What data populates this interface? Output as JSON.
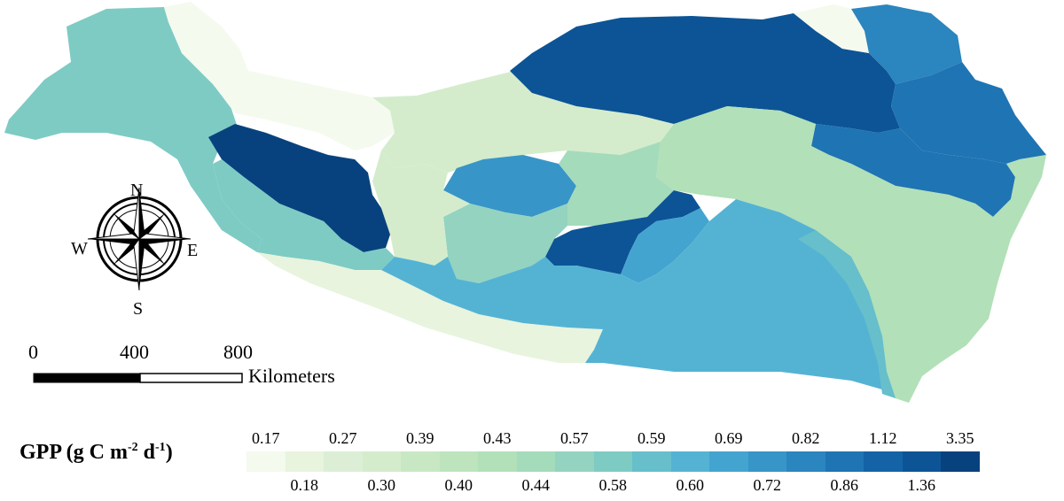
{
  "legend": {
    "title_main": "GPP (g C m",
    "title_exp1": "-2",
    "title_mid": " d",
    "title_exp2": "-1",
    "title_end": ")",
    "classes": [
      {
        "label": "0.17",
        "color": "#f4faee"
      },
      {
        "label": "0.18",
        "color": "#e8f4de"
      },
      {
        "label": "0.27",
        "color": "#dcefd6"
      },
      {
        "label": "0.30",
        "color": "#d4eccc"
      },
      {
        "label": "0.39",
        "color": "#c8e8c4"
      },
      {
        "label": "0.40",
        "color": "#bde4bd"
      },
      {
        "label": "0.43",
        "color": "#b2e0b8"
      },
      {
        "label": "0.44",
        "color": "#a4dbbb"
      },
      {
        "label": "0.57",
        "color": "#94d3c0"
      },
      {
        "label": "0.58",
        "color": "#7ecbc4"
      },
      {
        "label": "0.59",
        "color": "#66bfcb"
      },
      {
        "label": "0.60",
        "color": "#54b3d3"
      },
      {
        "label": "0.69",
        "color": "#44a4d0"
      },
      {
        "label": "0.72",
        "color": "#3895c8"
      },
      {
        "label": "0.82",
        "color": "#2b85be"
      },
      {
        "label": "0.86",
        "color": "#1f74b3"
      },
      {
        "label": "1.12",
        "color": "#1463a6"
      },
      {
        "label": "1.36",
        "color": "#0c5496"
      },
      {
        "label": "3.35",
        "color": "#08427e"
      }
    ]
  },
  "compass": {
    "north": "N",
    "south": "S",
    "east": "E",
    "west": "W"
  },
  "scalebar": {
    "tick0": "0",
    "tick1": "400",
    "tick2": "800",
    "unit": "Kilometers"
  }
}
